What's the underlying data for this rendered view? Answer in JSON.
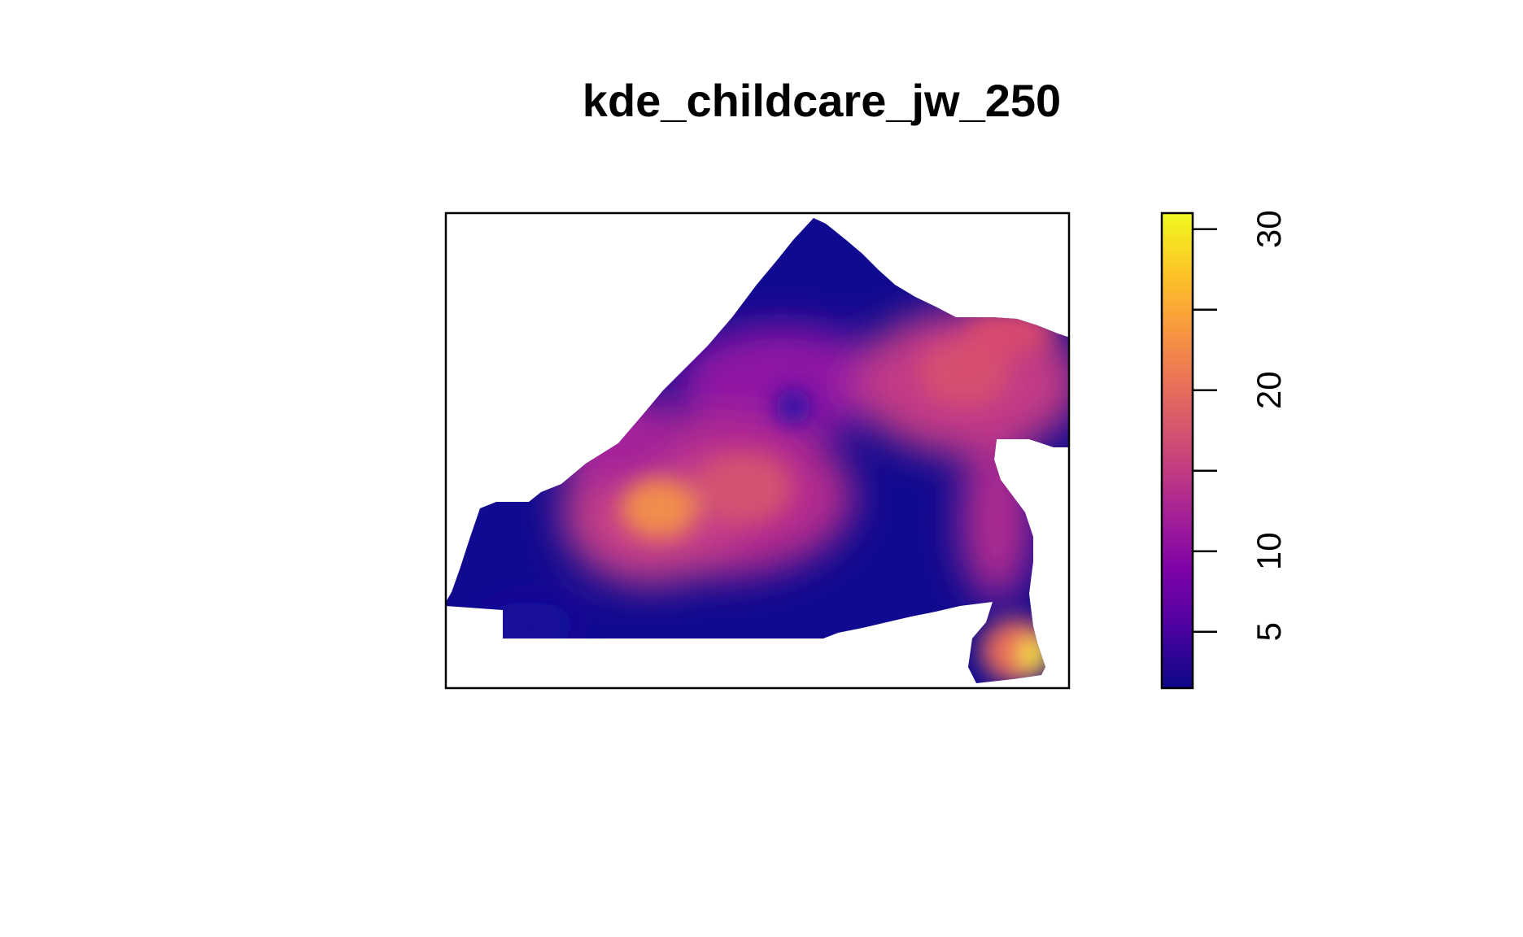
{
  "chart_data": {
    "type": "heatmap",
    "title": "kde_childcare_jw_250",
    "xlabel": "",
    "ylabel": "",
    "axes_shown": false,
    "colorbar": {
      "zlim": [
        1.5,
        31
      ],
      "ticks": [
        5,
        10,
        15,
        20,
        25,
        30
      ],
      "tick_labels": [
        "5",
        "10",
        "",
        "20",
        "",
        "30"
      ],
      "palette": "plasma",
      "colors": [
        "#0d0887",
        "#4c02a1",
        "#7e03a8",
        "#a92395",
        "#cc4778",
        "#e66c5c",
        "#f89540",
        "#fdc527",
        "#f0f921"
      ],
      "position": "right"
    },
    "grid": false,
    "description_values": {
      "background_density": 2,
      "hotspots": [
        {
          "location": "center-left",
          "value": 22
        },
        {
          "location": "center",
          "value": 16
        },
        {
          "location": "upper-right",
          "value": 17
        },
        {
          "location": "right-middle",
          "value": 12
        },
        {
          "location": "bottom-right",
          "value": 31
        }
      ]
    }
  }
}
